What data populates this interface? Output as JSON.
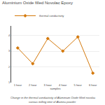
{
  "chart_data": {
    "type": "line",
    "title": "Aluminium Oxide filled Novolac Epoxy",
    "xlabel": "samples",
    "categories": [
      "1 hour",
      "2 hour",
      "3 hour",
      "4 hour",
      "5 hour",
      "6 hour"
    ],
    "series": [
      {
        "name": "thermal conductivity",
        "color": "#d4780a",
        "marker": "diamond",
        "values": [
          3.2,
          2.2,
          3.8,
          3.0,
          3.9,
          1.6
        ]
      }
    ],
    "ylim": [
      1.0,
      4.6
    ],
    "yticks": [
      1,
      2,
      3,
      4
    ],
    "grid": true,
    "legend": "top",
    "annotations": [
      "Change in the thermal conductivity of Aluminium Oxide filled novolac",
      "various milling time of Alumna powder"
    ]
  }
}
